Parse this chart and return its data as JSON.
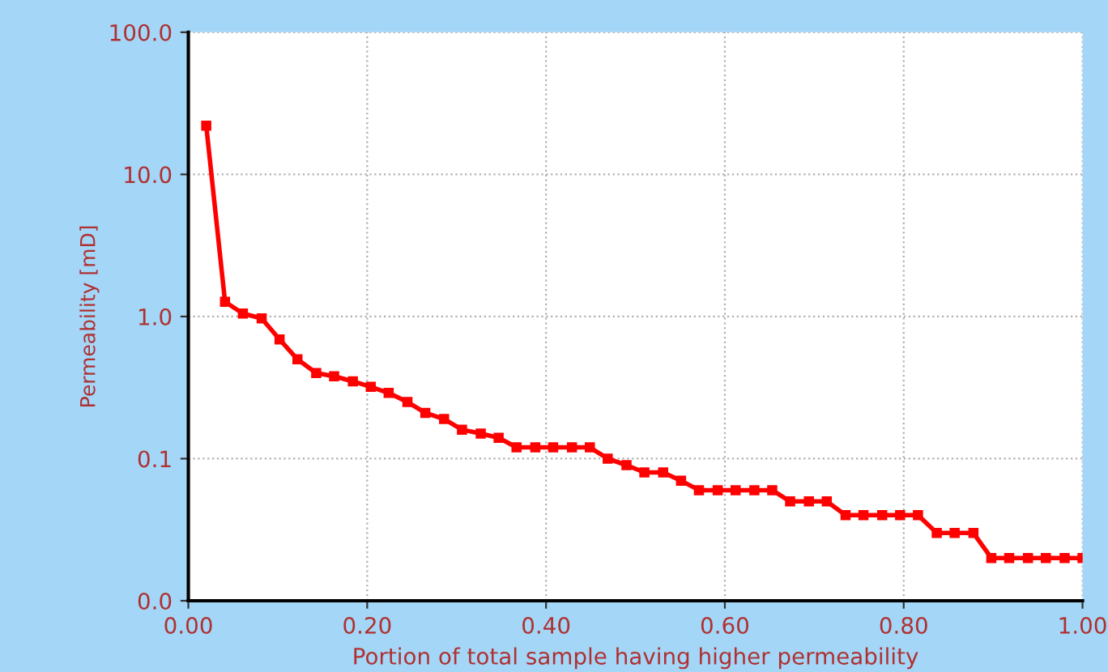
{
  "chart_data": {
    "type": "line",
    "xlabel": "Portion of total sample having higher permeability",
    "ylabel": "Permeability [mD]",
    "x": [
      0.02,
      0.041,
      0.061,
      0.082,
      0.102,
      0.122,
      0.143,
      0.163,
      0.184,
      0.204,
      0.224,
      0.245,
      0.265,
      0.286,
      0.306,
      0.327,
      0.347,
      0.367,
      0.388,
      0.408,
      0.429,
      0.449,
      0.469,
      0.49,
      0.51,
      0.531,
      0.551,
      0.571,
      0.592,
      0.612,
      0.633,
      0.653,
      0.673,
      0.694,
      0.714,
      0.735,
      0.755,
      0.776,
      0.796,
      0.816,
      0.837,
      0.857,
      0.878,
      0.898,
      0.918,
      0.939,
      0.959,
      0.98,
      1.0
    ],
    "series": [
      {
        "color": "#ff0000",
        "values": [
          22,
          1.27,
          1.05,
          0.97,
          0.69,
          0.5,
          0.4,
          0.38,
          0.35,
          0.32,
          0.29,
          0.25,
          0.21,
          0.19,
          0.16,
          0.15,
          0.14,
          0.12,
          0.12,
          0.12,
          0.12,
          0.12,
          0.1,
          0.09,
          0.08,
          0.08,
          0.07,
          0.06,
          0.06,
          0.06,
          0.06,
          0.06,
          0.05,
          0.05,
          0.05,
          0.04,
          0.04,
          0.04,
          0.04,
          0.04,
          0.03,
          0.03,
          0.03,
          0.02,
          0.02,
          0.02,
          0.02,
          0.02,
          0.02
        ]
      }
    ],
    "log": "y",
    "xlim": [
      0,
      1
    ],
    "xticks": [
      {
        "value": 0,
        "label": "0.00"
      },
      {
        "value": 0.2,
        "label": "0.20"
      },
      {
        "value": 0.4,
        "label": "0.40"
      },
      {
        "value": 0.6,
        "label": "0.60"
      },
      {
        "value": 0.8,
        "label": "0.80"
      },
      {
        "value": 1,
        "label": "1.00"
      }
    ],
    "ylim": [
      0.01,
      100
    ],
    "yticks": [
      {
        "value": 0.01,
        "label": "0.0"
      },
      {
        "value": 0.1,
        "label": "0.1"
      },
      {
        "value": 1,
        "label": "1.0"
      },
      {
        "value": 10,
        "label": "10.0"
      },
      {
        "value": 100,
        "label": "100.0"
      }
    ],
    "grid": true,
    "marker": "square",
    "line_style": "solid"
  }
}
